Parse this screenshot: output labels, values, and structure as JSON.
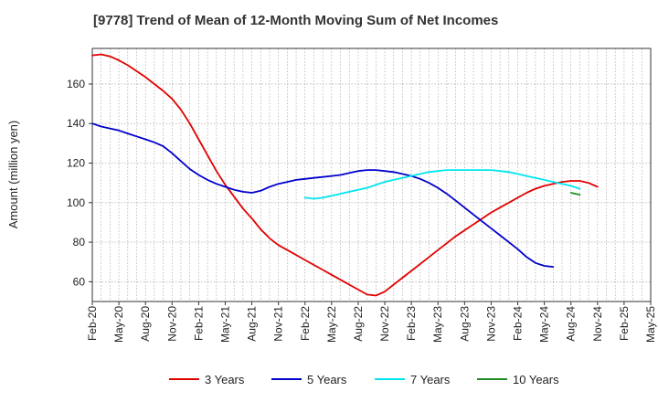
{
  "chart_data": {
    "type": "line",
    "title": "[9778]  Trend of Mean of 12-Month Moving Sum of Net Incomes",
    "ylabel": "Amount (million yen)",
    "xlabel": "",
    "ylim": [
      50,
      178
    ],
    "yticks": [
      60,
      80,
      100,
      120,
      140,
      160
    ],
    "x_start": "2020-02",
    "x_end": "2025-05",
    "x_tick_labels": [
      "Feb-20",
      "May-20",
      "Aug-20",
      "Nov-20",
      "Feb-21",
      "May-21",
      "Aug-21",
      "Nov-21",
      "Feb-22",
      "May-22",
      "Aug-22",
      "Nov-22",
      "Feb-23",
      "May-23",
      "Aug-23",
      "Nov-23",
      "Feb-24",
      "May-24",
      "Aug-24",
      "Nov-24",
      "Feb-25",
      "May-25"
    ],
    "grid": true,
    "legend_position": "bottom",
    "series": [
      {
        "name": "3 Years",
        "color": "#e00000",
        "points": [
          [
            "2020-02",
            174.5
          ],
          [
            "2020-03",
            175
          ],
          [
            "2020-04",
            174
          ],
          [
            "2020-05",
            172
          ],
          [
            "2020-06",
            169.5
          ],
          [
            "2020-07",
            166.5
          ],
          [
            "2020-08",
            163.5
          ],
          [
            "2020-09",
            160
          ],
          [
            "2020-10",
            156.5
          ],
          [
            "2020-11",
            152.5
          ],
          [
            "2020-12",
            147
          ],
          [
            "2021-01",
            140
          ],
          [
            "2021-02",
            132
          ],
          [
            "2021-03",
            124
          ],
          [
            "2021-04",
            116
          ],
          [
            "2021-05",
            109
          ],
          [
            "2021-06",
            103
          ],
          [
            "2021-07",
            97
          ],
          [
            "2021-08",
            92
          ],
          [
            "2021-09",
            86.5
          ],
          [
            "2021-10",
            82
          ],
          [
            "2021-11",
            78.5
          ],
          [
            "2021-12",
            76
          ],
          [
            "2022-01",
            73.5
          ],
          [
            "2022-02",
            71
          ],
          [
            "2022-03",
            68.5
          ],
          [
            "2022-04",
            66
          ],
          [
            "2022-05",
            63.5
          ],
          [
            "2022-06",
            61
          ],
          [
            "2022-07",
            58.5
          ],
          [
            "2022-08",
            56
          ],
          [
            "2022-09",
            53.5
          ],
          [
            "2022-10",
            53
          ],
          [
            "2022-11",
            55
          ],
          [
            "2022-12",
            58.5
          ],
          [
            "2023-01",
            62
          ],
          [
            "2023-02",
            65.5
          ],
          [
            "2023-03",
            69
          ],
          [
            "2023-04",
            72.5
          ],
          [
            "2023-05",
            76
          ],
          [
            "2023-06",
            79.5
          ],
          [
            "2023-07",
            83
          ],
          [
            "2023-08",
            86
          ],
          [
            "2023-09",
            89
          ],
          [
            "2023-10",
            92
          ],
          [
            "2023-11",
            95
          ],
          [
            "2023-12",
            97.5
          ],
          [
            "2024-01",
            100
          ],
          [
            "2024-02",
            102.5
          ],
          [
            "2024-03",
            105
          ],
          [
            "2024-04",
            107
          ],
          [
            "2024-05",
            108.5
          ],
          [
            "2024-06",
            109.5
          ],
          [
            "2024-07",
            110.5
          ],
          [
            "2024-08",
            111
          ],
          [
            "2024-09",
            111
          ],
          [
            "2024-10",
            110
          ],
          [
            "2024-11",
            108
          ]
        ]
      },
      {
        "name": "5 Years",
        "color": "#0000cc",
        "points": [
          [
            "2020-02",
            140
          ],
          [
            "2020-03",
            138.5
          ],
          [
            "2020-04",
            137.5
          ],
          [
            "2020-05",
            136.5
          ],
          [
            "2020-06",
            135
          ],
          [
            "2020-07",
            133.5
          ],
          [
            "2020-08",
            132
          ],
          [
            "2020-09",
            130.5
          ],
          [
            "2020-10",
            128.5
          ],
          [
            "2020-11",
            125
          ],
          [
            "2020-12",
            121
          ],
          [
            "2021-01",
            117
          ],
          [
            "2021-02",
            114
          ],
          [
            "2021-03",
            111.5
          ],
          [
            "2021-04",
            109.5
          ],
          [
            "2021-05",
            108
          ],
          [
            "2021-06",
            106.5
          ],
          [
            "2021-07",
            105.5
          ],
          [
            "2021-08",
            105
          ],
          [
            "2021-09",
            106
          ],
          [
            "2021-10",
            108
          ],
          [
            "2021-11",
            109.5
          ],
          [
            "2021-12",
            110.5
          ],
          [
            "2022-01",
            111.5
          ],
          [
            "2022-02",
            112
          ],
          [
            "2022-03",
            112.5
          ],
          [
            "2022-04",
            113
          ],
          [
            "2022-05",
            113.5
          ],
          [
            "2022-06",
            114
          ],
          [
            "2022-07",
            115
          ],
          [
            "2022-08",
            116
          ],
          [
            "2022-09",
            116.5
          ],
          [
            "2022-10",
            116.5
          ],
          [
            "2022-11",
            116
          ],
          [
            "2022-12",
            115.5
          ],
          [
            "2023-01",
            114.5
          ],
          [
            "2023-02",
            113.5
          ],
          [
            "2023-03",
            112
          ],
          [
            "2023-04",
            110
          ],
          [
            "2023-05",
            107.5
          ],
          [
            "2023-06",
            104.5
          ],
          [
            "2023-07",
            101
          ],
          [
            "2023-08",
            97.5
          ],
          [
            "2023-09",
            94
          ],
          [
            "2023-10",
            90.5
          ],
          [
            "2023-11",
            87
          ],
          [
            "2023-12",
            83.5
          ],
          [
            "2024-01",
            80
          ],
          [
            "2024-02",
            76.5
          ],
          [
            "2024-03",
            72.5
          ],
          [
            "2024-04",
            69.5
          ],
          [
            "2024-05",
            68
          ],
          [
            "2024-06",
            67.5
          ]
        ]
      },
      {
        "name": "7 Years",
        "color": "#00e5ee",
        "points": [
          [
            "2022-02",
            102.5
          ],
          [
            "2022-03",
            102
          ],
          [
            "2022-04",
            102.5
          ],
          [
            "2022-05",
            103.5
          ],
          [
            "2022-06",
            104.5
          ],
          [
            "2022-07",
            105.5
          ],
          [
            "2022-08",
            106.5
          ],
          [
            "2022-09",
            107.5
          ],
          [
            "2022-10",
            109
          ],
          [
            "2022-11",
            110.5
          ],
          [
            "2022-12",
            111.5
          ],
          [
            "2023-01",
            112.5
          ],
          [
            "2023-02",
            113.5
          ],
          [
            "2023-03",
            114.5
          ],
          [
            "2023-04",
            115.5
          ],
          [
            "2023-05",
            116
          ],
          [
            "2023-06",
            116.5
          ],
          [
            "2023-07",
            116.5
          ],
          [
            "2023-08",
            116.5
          ],
          [
            "2023-09",
            116.5
          ],
          [
            "2023-10",
            116.5
          ],
          [
            "2023-11",
            116.5
          ],
          [
            "2023-12",
            116
          ],
          [
            "2024-01",
            115.5
          ],
          [
            "2024-02",
            114.5
          ],
          [
            "2024-03",
            113.5
          ],
          [
            "2024-04",
            112.5
          ],
          [
            "2024-05",
            111.5
          ],
          [
            "2024-06",
            110.5
          ],
          [
            "2024-07",
            109.5
          ],
          [
            "2024-08",
            108.5
          ],
          [
            "2024-09",
            107
          ]
        ]
      },
      {
        "name": "10 Years",
        "color": "#228b22",
        "points": [
          [
            "2024-08",
            105
          ],
          [
            "2024-09",
            104
          ]
        ]
      }
    ]
  }
}
